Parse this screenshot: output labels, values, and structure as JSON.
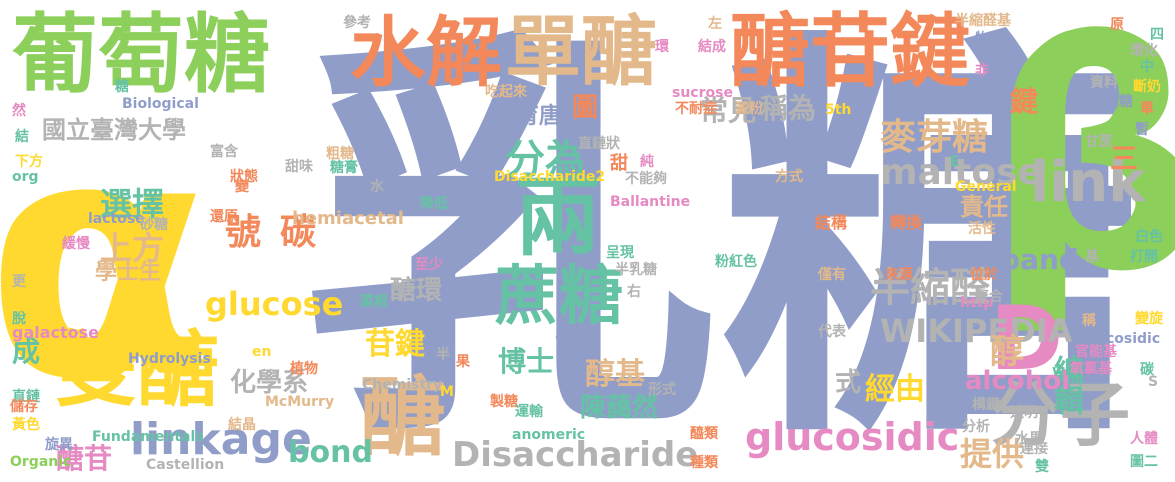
{
  "colors": {
    "blue": "#8f9dc8",
    "green": "#8ccf5a",
    "orange": "#f3885a",
    "tan": "#e3b98b",
    "teal": "#66c2a5",
    "pink": "#e68ac3",
    "yellow": "#ffd92f",
    "gray": "#b3b3b3"
  },
  "words": [
    {
      "text": "乳糖",
      "color": "blue"
    },
    {
      "text": "α",
      "color": "yellow"
    },
    {
      "text": "β",
      "color": "green"
    },
    {
      "text": "葡萄糖",
      "color": "green"
    },
    {
      "text": "水解",
      "color": "orange"
    },
    {
      "text": "單醣",
      "color": "tan"
    },
    {
      "text": "醣苷鍵",
      "color": "orange"
    },
    {
      "text": "兩",
      "color": "teal"
    },
    {
      "text": "雙醣",
      "color": "yellow"
    },
    {
      "text": "醣",
      "color": "tan"
    },
    {
      "text": "蔗糖",
      "color": "teal"
    },
    {
      "text": "分子",
      "color": "gray"
    },
    {
      "text": "D",
      "color": "pink"
    },
    {
      "text": "link",
      "color": "gray"
    },
    {
      "text": "linkage",
      "color": "blue"
    },
    {
      "text": "Disaccharide",
      "color": "gray"
    },
    {
      "text": "glucosidic",
      "color": "pink"
    },
    {
      "text": "麥芽糖",
      "color": "tan"
    },
    {
      "text": "國立臺灣大學",
      "color": "gray"
    },
    {
      "text": "分為",
      "color": "teal"
    },
    {
      "text": "半縮醛",
      "color": "gray"
    },
    {
      "text": "maltose",
      "color": "gray"
    },
    {
      "text": "號",
      "color": "orange"
    },
    {
      "text": "碳",
      "color": "orange"
    },
    {
      "text": "glucose",
      "color": "yellow"
    },
    {
      "text": "WIKIPEDIA",
      "color": "gray"
    },
    {
      "text": "選擇",
      "color": "teal"
    },
    {
      "text": "上方",
      "color": "tan"
    },
    {
      "text": "學士生",
      "color": "tan"
    },
    {
      "text": "化學系",
      "color": "gray"
    },
    {
      "text": "苷鍵",
      "color": "yellow"
    },
    {
      "text": "醣環",
      "color": "gray"
    },
    {
      "text": "bond",
      "color": "teal"
    },
    {
      "text": "醇基",
      "color": "tan"
    },
    {
      "text": "陳藹然",
      "color": "teal"
    },
    {
      "text": "博士",
      "color": "teal"
    },
    {
      "text": "酶",
      "color": "blue"
    },
    {
      "text": "經由",
      "color": "yellow"
    },
    {
      "text": "提供",
      "color": "tan"
    },
    {
      "text": "醇",
      "color": "tan"
    },
    {
      "text": "編輯",
      "color": "teal"
    },
    {
      "text": "alcohol",
      "color": "pink"
    },
    {
      "text": "band",
      "color": "blue"
    },
    {
      "text": "責任",
      "color": "tan"
    },
    {
      "text": "鍵",
      "color": "orange"
    },
    {
      "text": "三",
      "color": "orange"
    },
    {
      "text": "稱為",
      "color": "gray"
    },
    {
      "text": "常見",
      "color": "gray"
    },
    {
      "text": "圖",
      "color": "orange"
    },
    {
      "text": "張育唐",
      "color": "blue"
    },
    {
      "text": "醣苷",
      "color": "pink"
    },
    {
      "text": "成",
      "color": "teal"
    },
    {
      "text": "式",
      "color": "gray"
    },
    {
      "text": "hemiacetal",
      "color": "tan"
    },
    {
      "text": "lactose",
      "color": "blue"
    },
    {
      "text": "Disaccharide2",
      "color": "yellow"
    },
    {
      "text": "Ballantine",
      "color": "pink"
    },
    {
      "text": "galactose",
      "color": "pink"
    },
    {
      "text": "Hydrolysis",
      "color": "blue"
    },
    {
      "text": "McMurry",
      "color": "tan"
    },
    {
      "text": "Fundamentals",
      "color": "teal"
    },
    {
      "text": "Organic",
      "color": "green"
    },
    {
      "text": "Castellion",
      "color": "gray"
    },
    {
      "text": "Chemistry",
      "color": "gray"
    },
    {
      "text": "anomeric",
      "color": "teal"
    },
    {
      "text": "sucrose",
      "color": "pink"
    },
    {
      "text": "Biological",
      "color": "blue"
    },
    {
      "text": "General",
      "color": "yellow"
    },
    {
      "text": "http",
      "color": "pink"
    },
    {
      "text": "glycosidic",
      "color": "blue"
    },
    {
      "text": "wiki",
      "color": "teal"
    },
    {
      "text": "5th",
      "color": "yellow"
    },
    {
      "text": "org",
      "color": "teal"
    },
    {
      "text": "en",
      "color": "yellow"
    },
    {
      "text": "M",
      "color": "yellow"
    },
    {
      "text": "E",
      "color": "teal"
    },
    {
      "text": "S",
      "color": "gray"
    },
    {
      "text": "參考",
      "color": "gray"
    },
    {
      "text": "吃起來",
      "color": "tan"
    },
    {
      "text": "不耐症",
      "color": "orange"
    },
    {
      "text": "左",
      "color": "tan"
    },
    {
      "text": "環",
      "color": "pink"
    },
    {
      "text": "結成",
      "color": "pink"
    },
    {
      "text": "半縮醛基",
      "color": "tan"
    },
    {
      "text": "物質",
      "color": "blue"
    },
    {
      "text": "原",
      "color": "orange"
    },
    {
      "text": "四",
      "color": "teal"
    },
    {
      "text": "環化",
      "color": "gray"
    },
    {
      "text": "中",
      "color": "teal"
    },
    {
      "text": "非",
      "color": "pink"
    },
    {
      "text": "資料",
      "color": "gray"
    },
    {
      "text": "斷奶",
      "color": "yellow"
    },
    {
      "text": "果糖",
      "color": "blue"
    },
    {
      "text": "單",
      "color": "orange"
    },
    {
      "text": "暫",
      "color": "blue"
    },
    {
      "text": "澱粉",
      "color": "tan"
    },
    {
      "text": "甘蔗",
      "color": "gray"
    },
    {
      "text": "直鏈狀",
      "color": "gray"
    },
    {
      "text": "甜",
      "color": "orange"
    },
    {
      "text": "純",
      "color": "pink"
    },
    {
      "text": "不能夠",
      "color": "gray"
    },
    {
      "text": "方式",
      "color": "tan"
    },
    {
      "text": "結構",
      "color": "orange"
    },
    {
      "text": "轉換",
      "color": "orange"
    },
    {
      "text": "活性",
      "color": "tan"
    },
    {
      "text": "白色",
      "color": "teal"
    },
    {
      "text": "打開",
      "color": "teal"
    },
    {
      "text": "呈現",
      "color": "teal"
    },
    {
      "text": "半乳糖",
      "color": "gray"
    },
    {
      "text": "粉紅色",
      "color": "teal"
    },
    {
      "text": "僅有",
      "color": "tan"
    },
    {
      "text": "來源",
      "color": "orange"
    },
    {
      "text": "位於",
      "color": "orange"
    },
    {
      "text": "聚合",
      "color": "gray"
    },
    {
      "text": "變旋",
      "color": "yellow"
    },
    {
      "text": "稱",
      "color": "tan"
    },
    {
      "text": "官能基",
      "color": "pink"
    },
    {
      "text": "氧氯基",
      "color": "pink"
    },
    {
      "text": "碳",
      "color": "teal"
    },
    {
      "text": "構鍵",
      "color": "gray"
    },
    {
      "text": "透明",
      "color": "gray"
    },
    {
      "text": "分析",
      "color": "gray"
    },
    {
      "text": "水果",
      "color": "gray"
    },
    {
      "text": "連接",
      "color": "gray"
    },
    {
      "text": "人體",
      "color": "pink"
    },
    {
      "text": "雙",
      "color": "teal"
    },
    {
      "text": "圖二",
      "color": "teal"
    },
    {
      "text": "種類",
      "color": "orange"
    },
    {
      "text": "醯類",
      "color": "orange"
    },
    {
      "text": "代表",
      "color": "gray"
    },
    {
      "text": "右",
      "color": "gray"
    },
    {
      "text": "形式",
      "color": "gray"
    },
    {
      "text": "製糖",
      "color": "orange"
    },
    {
      "text": "運輸",
      "color": "teal"
    },
    {
      "text": "果",
      "color": "orange"
    },
    {
      "text": "半",
      "color": "gray"
    },
    {
      "text": "植物",
      "color": "orange"
    },
    {
      "text": "菜根",
      "color": "teal"
    },
    {
      "text": "至少",
      "color": "pink"
    },
    {
      "text": "結晶",
      "color": "tan"
    },
    {
      "text": "直鏈",
      "color": "teal"
    },
    {
      "text": "黃色",
      "color": "yellow"
    },
    {
      "text": "旋異",
      "color": "blue"
    },
    {
      "text": "儲存",
      "color": "orange"
    },
    {
      "text": "脫",
      "color": "teal"
    },
    {
      "text": "更",
      "color": "gray"
    },
    {
      "text": "緩慢",
      "color": "pink"
    },
    {
      "text": "還原",
      "color": "orange"
    },
    {
      "text": "砂糖",
      "color": "gray"
    },
    {
      "text": "降低",
      "color": "teal"
    },
    {
      "text": "水",
      "color": "gray"
    },
    {
      "text": "變",
      "color": "orange"
    },
    {
      "text": "狀態",
      "color": "orange"
    },
    {
      "text": "甜味",
      "color": "gray"
    },
    {
      "text": "粗糖",
      "color": "tan"
    },
    {
      "text": "糖膏",
      "color": "teal"
    },
    {
      "text": "富含",
      "color": "gray"
    },
    {
      "text": "下方",
      "color": "yellow"
    },
    {
      "text": "結",
      "color": "teal"
    },
    {
      "text": "然",
      "color": "pink"
    },
    {
      "text": "糖",
      "color": "teal"
    },
    {
      "text": "基",
      "color": "gray"
    }
  ]
}
